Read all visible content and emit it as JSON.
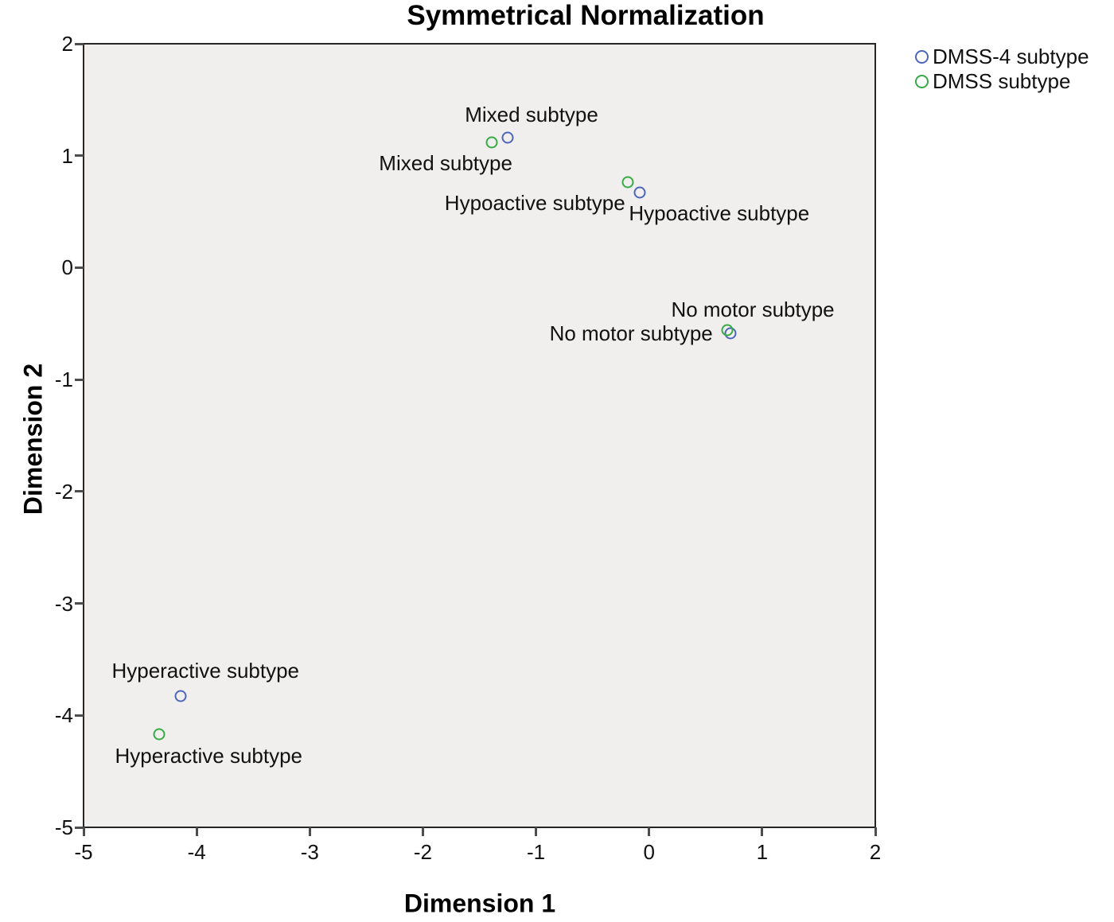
{
  "page": {
    "background": "#ffffff"
  },
  "chart_data": {
    "type": "scatter",
    "title": "Symmetrical Normalization",
    "xlabel": "Dimension 1",
    "ylabel": "Dimension 2",
    "xlim": [
      -5,
      2
    ],
    "ylim": [
      -5,
      2
    ],
    "x_ticks": [
      -5,
      -4,
      -3,
      -2,
      -1,
      0,
      1,
      2
    ],
    "y_ticks": [
      2,
      1,
      0,
      -1,
      -2,
      -3,
      -4,
      -5
    ],
    "grid": false,
    "plot_bg_color": "#f0efed",
    "frame_color": "#262626",
    "tick_color": "#4d4d4d",
    "legend_position": "top-right",
    "series": [
      {
        "name": "DMSS-4 subtype",
        "marker": "circle-outline",
        "color": "#4c66bb",
        "points": [
          {
            "x": -1.25,
            "y": 1.16,
            "label": "Mixed subtype",
            "anchor": "center",
            "dx": 30,
            "dy": -29
          },
          {
            "x": -0.08,
            "y": 0.67,
            "label": "Hypoactive subtype",
            "anchor": "left",
            "dx": -14,
            "dy": 26
          },
          {
            "x": 0.72,
            "y": -0.59,
            "label": "No motor subtype",
            "anchor": "center",
            "dx": 28,
            "dy": -30
          },
          {
            "x": -4.14,
            "y": -3.83,
            "label": "Hyperactive subtype",
            "anchor": "center",
            "dx": 31,
            "dy": -32
          }
        ]
      },
      {
        "name": "DMSS subtype",
        "marker": "circle-outline",
        "color": "#36ab46",
        "points": [
          {
            "x": -1.39,
            "y": 1.12,
            "label": "Mixed subtype",
            "anchor": "center",
            "dx": -58,
            "dy": 26
          },
          {
            "x": -0.19,
            "y": 0.76,
            "label": "Hypoactive subtype",
            "anchor": "right",
            "dx": -3,
            "dy": 26
          },
          {
            "x": 0.69,
            "y": -0.56,
            "label": "No motor subtype",
            "anchor": "right",
            "dx": -18,
            "dy": 4
          },
          {
            "x": -4.33,
            "y": -4.17,
            "label": "Hyperactive subtype",
            "anchor": "center",
            "dx": 62,
            "dy": 27
          }
        ]
      }
    ]
  }
}
